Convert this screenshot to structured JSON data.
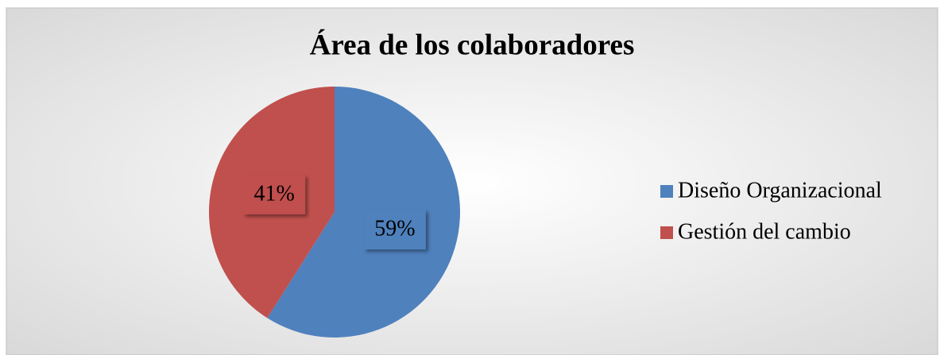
{
  "chart_data": {
    "type": "pie",
    "title": "Área de los colaboradores",
    "categories": [
      "Diseño Organizacional",
      "Gestión del cambio"
    ],
    "values": [
      59,
      41
    ],
    "value_labels": [
      "59%",
      "41%"
    ],
    "colors": [
      "#4f81bd",
      "#c0504d"
    ],
    "legend": "right"
  }
}
